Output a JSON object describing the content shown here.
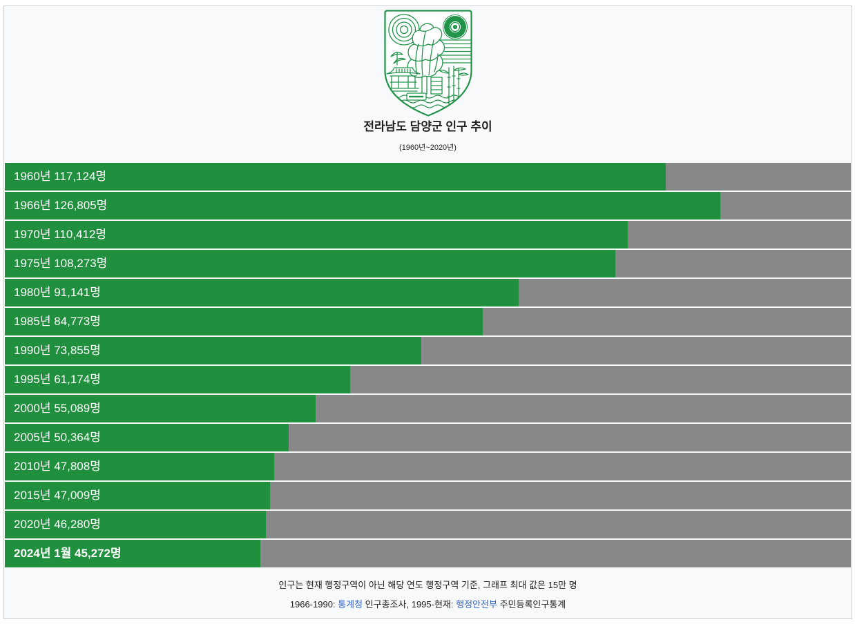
{
  "header": {
    "emblem_icon": "county-emblem-icon"
  },
  "colors": {
    "bar_fill": "#20903f",
    "bar_track": "#888888",
    "bar_label": "#ffffff",
    "emblem": "#22944a",
    "link": "#3366cc"
  },
  "chart_data": {
    "type": "bar",
    "orientation": "horizontal",
    "title": "전라남도 담양군 인구 추이",
    "subtitle": "(1960년~2020년)",
    "xlim": [
      0,
      150000
    ],
    "grid": false,
    "legend": "none",
    "categories": [
      "1960년",
      "1966년",
      "1970년",
      "1975년",
      "1980년",
      "1985년",
      "1990년",
      "1995년",
      "2000년",
      "2005년",
      "2010년",
      "2015년",
      "2020년",
      "2024년 1월"
    ],
    "values": [
      117124,
      126805,
      110412,
      108273,
      91141,
      84773,
      73855,
      61174,
      55089,
      50364,
      47808,
      47009,
      46280,
      45272
    ],
    "value_labels": [
      "117,124명",
      "126,805명",
      "110,412명",
      "108,273명",
      "91,141명",
      "84,773명",
      "73,855명",
      "61,174명",
      "55,089명",
      "50,364명",
      "47,808명",
      "47,009명",
      "46,280명",
      "45,272명"
    ]
  },
  "footer": {
    "note": "인구는 현재 행정구역이 아닌 해당 연도 행정구역 기준, 그래프 최대 값은 15만 명",
    "source_range_1": "1966-1990:",
    "source_agency_1": "통계청",
    "source_dataset_1": "인구총조사,",
    "source_range_2": "1995-현재:",
    "source_agency_2": "행정안전부",
    "source_dataset_2": "주민등록인구통계"
  }
}
